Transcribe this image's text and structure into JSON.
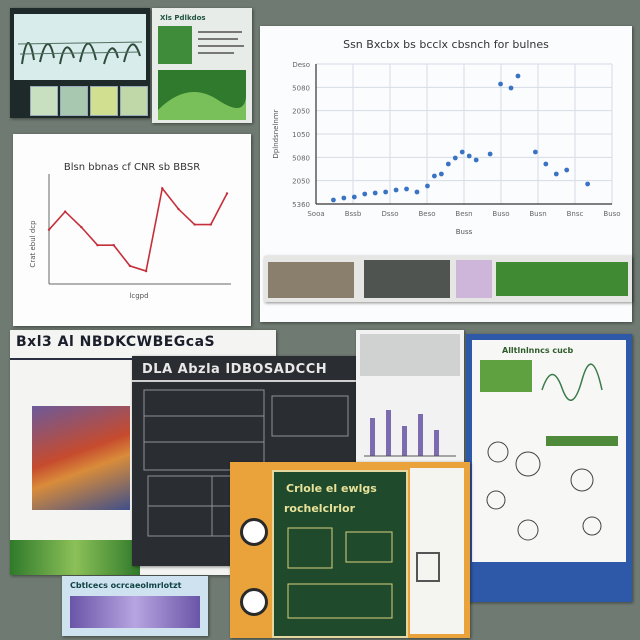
{
  "colors": {
    "background": "#6f7a72",
    "line_series": "#c62f3a",
    "scatter_series": "#3b73c4",
    "poster_blue": "#2e58a8",
    "poster_orange": "#eaa33a",
    "poster_green": "#1f4a2c"
  },
  "tiles": {
    "sketch_board": {},
    "green_card": {
      "header": "Xls Pdlkdos"
    },
    "line_chart": {},
    "scatter_chart": {},
    "photo_strip": {},
    "heatmap_poster": {
      "title": "Bxl3 Al NBDKCWBEGcaS"
    },
    "dark_schematic": {
      "title": "DLA Abzla IDBOSADCCH"
    },
    "bar_card": {},
    "diagram_poster": {
      "header": "Alltlnlnncs cucb"
    },
    "green_poster": {
      "title_line1": "Crlole el ewlgs",
      "title_line2": "rochelclrlor"
    },
    "banner": {
      "header": "Cbtlcecs ocrcaeolmrlotzt"
    }
  },
  "chart_data": [
    {
      "type": "line",
      "title": "Blsn bbnas cf CNR sb BBSR",
      "xlabel": "lcgpd",
      "ylabel": "Crat ebul dcp",
      "x": [
        1,
        2,
        3,
        4,
        5,
        6,
        7,
        8,
        9,
        10,
        11,
        12
      ],
      "series": [
        {
          "values": [
            3.6,
            4.3,
            3.7,
            3.0,
            3.0,
            2.2,
            2.0,
            5.2,
            4.4,
            3.8,
            3.8,
            5.0
          ]
        }
      ],
      "ylim": [
        1.5,
        5.6
      ],
      "grid": false
    },
    {
      "type": "scatter",
      "title": "Ssn Bxcbx bs bcclx cbsnch for bulnes",
      "xlabel": "Buss",
      "ylabel": "Dplndsnelnmr",
      "xtick_labels": [
        "Sooa",
        "Bssb",
        "Dsso",
        "Beso",
        "Besn",
        "Buso",
        "Busn",
        "Bnsc",
        "Buso"
      ],
      "ytick_labels": [
        "Deso",
        "5080",
        "2050",
        "1050",
        "5080",
        "2050",
        "5360"
      ],
      "points": [
        [
          1.0,
          0.2
        ],
        [
          1.3,
          0.3
        ],
        [
          1.6,
          0.35
        ],
        [
          1.9,
          0.5
        ],
        [
          2.2,
          0.55
        ],
        [
          2.5,
          0.6
        ],
        [
          2.8,
          0.7
        ],
        [
          3.1,
          0.75
        ],
        [
          3.4,
          0.6
        ],
        [
          3.7,
          0.9
        ],
        [
          3.9,
          1.4
        ],
        [
          4.1,
          1.5
        ],
        [
          4.3,
          2.0
        ],
        [
          4.5,
          2.3
        ],
        [
          4.7,
          2.6
        ],
        [
          4.9,
          2.4
        ],
        [
          5.1,
          2.2
        ],
        [
          5.5,
          2.5
        ],
        [
          5.8,
          6.0
        ],
        [
          6.1,
          5.8
        ],
        [
          6.3,
          6.4
        ],
        [
          6.8,
          2.6
        ],
        [
          7.1,
          2.0
        ],
        [
          7.4,
          1.5
        ],
        [
          7.7,
          1.7
        ],
        [
          8.3,
          1.0
        ]
      ],
      "xlim": [
        0.5,
        9.0
      ],
      "ylim": [
        0,
        7
      ],
      "grid": true
    }
  ]
}
